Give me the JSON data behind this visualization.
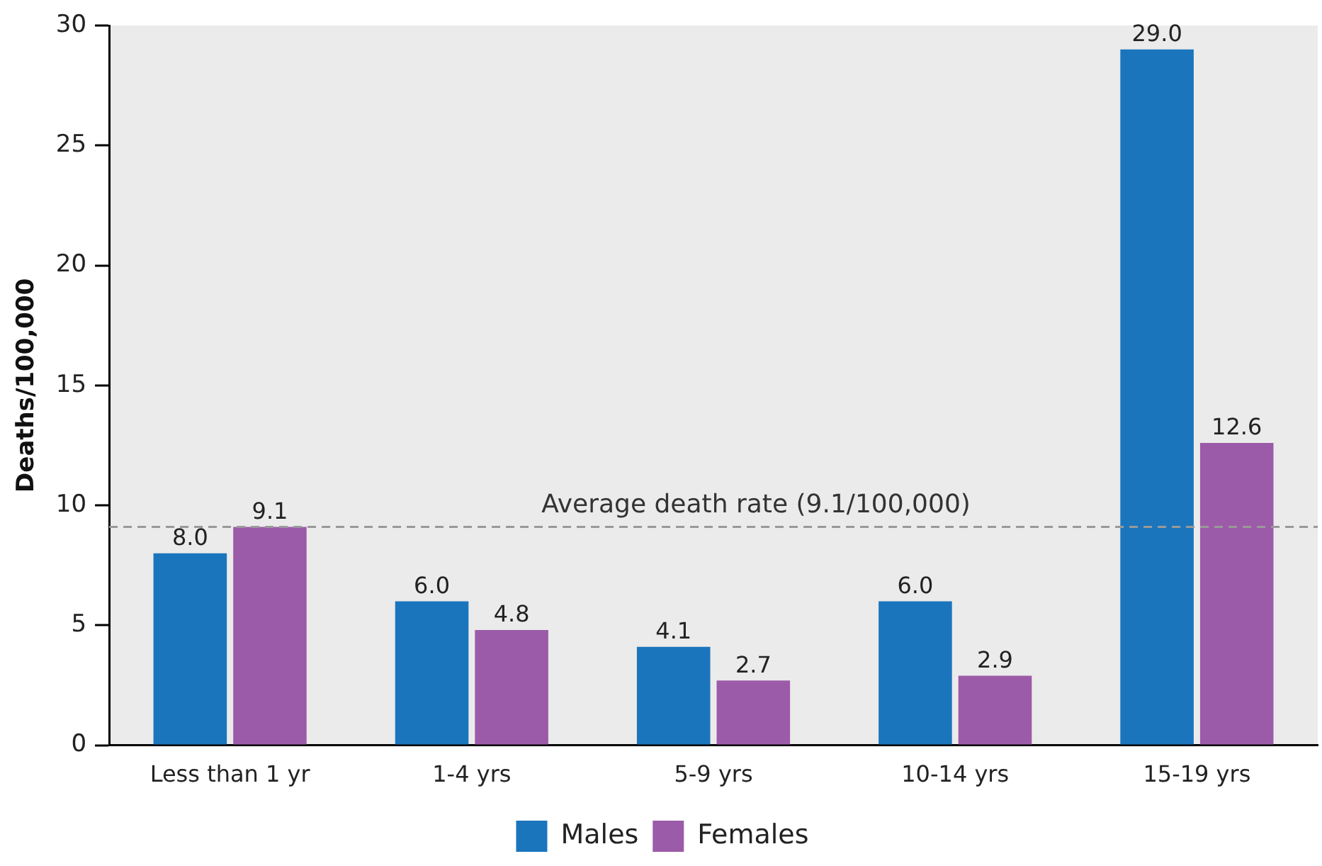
{
  "chart_data": {
    "type": "bar",
    "ylabel": "Deaths/100,000",
    "categories": [
      "Less than 1 yr",
      "1-4 yrs",
      "5-9 yrs",
      "10-14 yrs",
      "15-19 yrs"
    ],
    "series": [
      {
        "name": "Males",
        "color": "#1b75bc",
        "values": [
          8,
          6,
          4.1,
          6,
          29
        ],
        "value_labels": [
          "8.0",
          "6.0",
          "4.1",
          "6.0",
          "29.0"
        ]
      },
      {
        "name": "Females",
        "color": "#9c5ba8",
        "values": [
          9.1,
          4.8,
          2.7,
          2.9,
          12.6
        ],
        "value_labels": [
          "9.1",
          "4.8",
          "2.7",
          "2.9",
          "12.6"
        ]
      }
    ],
    "ylim": [
      0,
      30
    ],
    "yticks": [
      0,
      5,
      10,
      15,
      20,
      25,
      30
    ],
    "grid": false,
    "legend": "bottom",
    "ref_lines": [
      {
        "axis": "y",
        "value": 9.1,
        "label": "Average death rate (9.1/100,000)",
        "color": "#999999",
        "line_style": "dashed"
      }
    ]
  }
}
